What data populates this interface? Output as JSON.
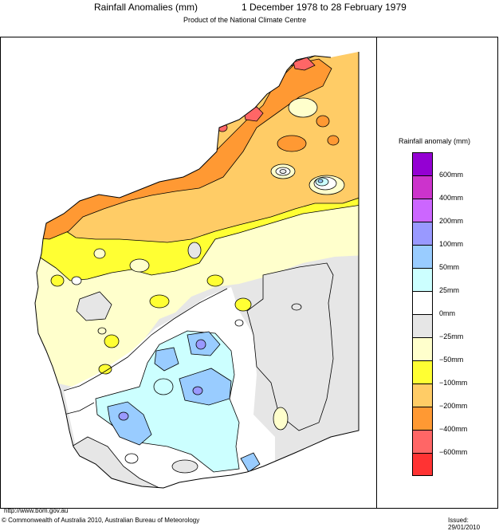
{
  "header": {
    "title": "Rainfall Anomalies (mm)",
    "period": "1 December 1978 to 28 February 1979",
    "subtitle": "Product of the National Climate Centre"
  },
  "legend": {
    "title": "Rainfall anomaly (mm)",
    "classes": [
      {
        "label": "600mm",
        "color": "#9400d3"
      },
      {
        "label": "400mm",
        "color": "#cc33cc"
      },
      {
        "label": "200mm",
        "color": "#cc66ff"
      },
      {
        "label": "100mm",
        "color": "#9999ff"
      },
      {
        "label": "50mm",
        "color": "#99ccff"
      },
      {
        "label": "25mm",
        "color": "#ccffff"
      },
      {
        "label": "0mm",
        "color": "#ffffff"
      },
      {
        "label": "−25mm",
        "color": "#e6e6e6"
      },
      {
        "label": "−50mm",
        "color": "#ffffcc"
      },
      {
        "label": "−100mm",
        "color": "#ffff33"
      },
      {
        "label": "−200mm",
        "color": "#ffcc66"
      },
      {
        "label": "−400mm",
        "color": "#ff9933"
      },
      {
        "label": "−600mm",
        "color": "#ff6666"
      },
      {
        "label": "",
        "color": "#ff3333"
      }
    ]
  },
  "footer": {
    "url": "http://www.bom.gov.au",
    "copyright": "© Commonwealth of Australia 2010, Australian Bureau of Meteorology",
    "issued": "Issued: 29/01/2010"
  }
}
